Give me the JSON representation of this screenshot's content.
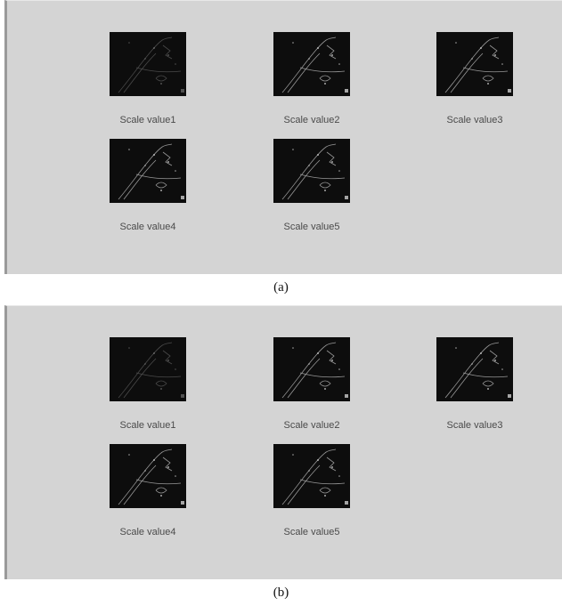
{
  "panels": [
    {
      "caption": "(a)",
      "items": [
        {
          "label": "Scale value1"
        },
        {
          "label": "Scale value2"
        },
        {
          "label": "Scale value3"
        },
        {
          "label": "Scale value4"
        },
        {
          "label": "Scale value5"
        }
      ]
    },
    {
      "caption": "(b)",
      "items": [
        {
          "label": "Scale value1"
        },
        {
          "label": "Scale value2"
        },
        {
          "label": "Scale value3"
        },
        {
          "label": "Scale value4"
        },
        {
          "label": "Scale value5"
        }
      ]
    }
  ]
}
